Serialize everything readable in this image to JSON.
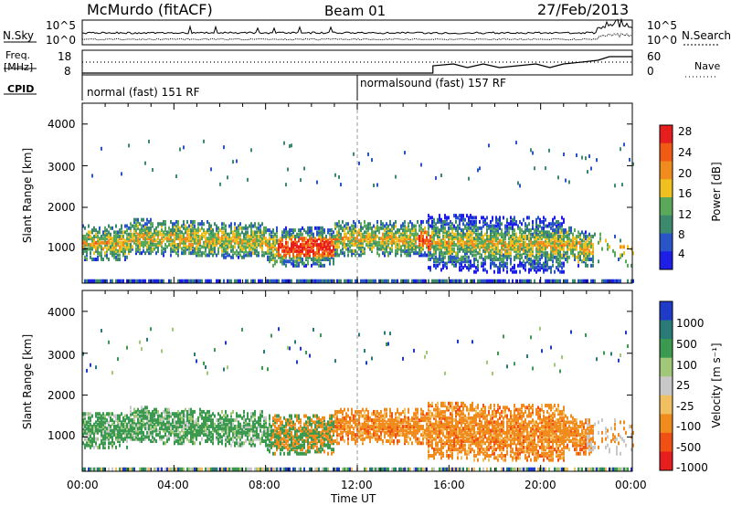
{
  "header": {
    "station": "McMurdo (fitACF)",
    "beam": "Beam 01",
    "date": "27/Feb/2013"
  },
  "noise_panel": {
    "left_label": "N.Sky",
    "right_label": "N.Search",
    "tick_high": "10^5",
    "tick_low": "10^0"
  },
  "freq_panel": {
    "left_label_line1": "Freq.",
    "left_label_line2": "[MHz]",
    "left_tick_high": "18",
    "left_tick_low": "8",
    "right_label": "Nave",
    "right_tick_high": "60",
    "right_tick_low": "0"
  },
  "cpid_panel": {
    "label": "CPID",
    "modes": [
      {
        "name": "normal (fast) 151 RF",
        "start_hour": 0
      },
      {
        "name": "normalsound (fast) 157 RF",
        "start_hour": 12
      }
    ]
  },
  "chart_data": [
    {
      "type": "heatmap",
      "title": "Power",
      "ylabel": "Slant Range [km]",
      "xlabel": "",
      "xlim": [
        0,
        24
      ],
      "ylim": [
        180,
        4500
      ],
      "yticks": [
        "1000",
        "2000",
        "3000",
        "4000"
      ],
      "colorbar": {
        "label": "Power [dB]",
        "ticks": [
          "4",
          "8",
          "12",
          "16",
          "20",
          "24",
          "28"
        ],
        "colors": [
          "#1e1ee6",
          "#2a55c8",
          "#3c8a6e",
          "#5aa85a",
          "#f0c020",
          "#f08c1e",
          "#f05a14",
          "#e61e1e"
        ],
        "range": [
          0,
          30
        ]
      }
    },
    {
      "type": "heatmap",
      "title": "Velocity",
      "ylabel": "Slant Range [km]",
      "xlabel": "Time UT",
      "xlim": [
        0,
        24
      ],
      "ylim": [
        180,
        4500
      ],
      "yticks": [
        "1000",
        "2000",
        "3000",
        "4000"
      ],
      "xticks": [
        "00:00",
        "04:00",
        "08:00",
        "12:00",
        "16:00",
        "20:00",
        "00:00"
      ],
      "colorbar": {
        "label": "Velocity [m s⁻¹]",
        "ticks": [
          "1000",
          "500",
          "100",
          "25",
          "-25",
          "-100",
          "-500",
          "-1000"
        ],
        "colors": [
          "#1e3cc8",
          "#2a7a78",
          "#3c9a50",
          "#a0c878",
          "#c8c8c8",
          "#f0c060",
          "#f08c1e",
          "#f05014",
          "#e61e1e"
        ]
      }
    }
  ]
}
